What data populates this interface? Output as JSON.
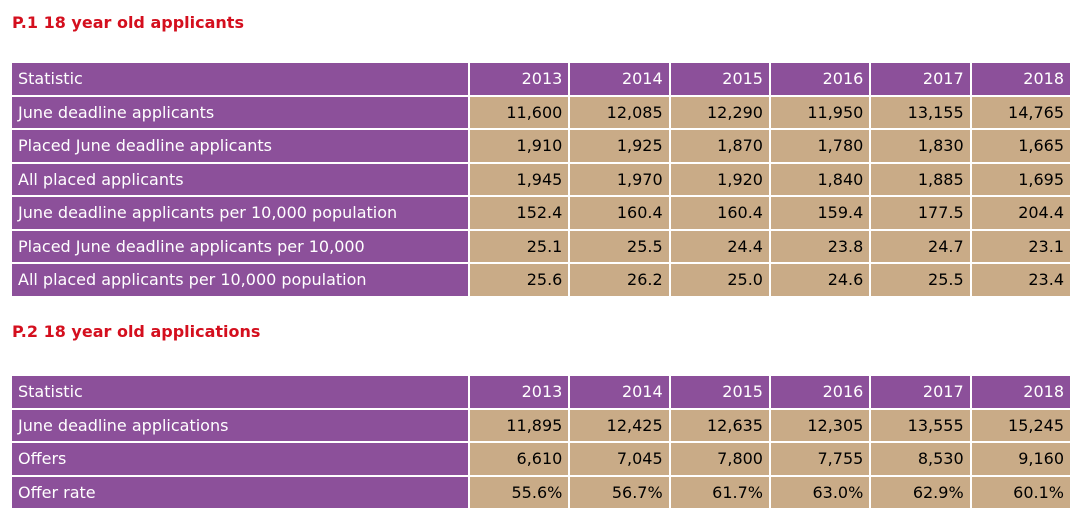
{
  "tables": [
    {
      "title": "P.1 18 year old applicants",
      "header": [
        "Statistic",
        "2013",
        "2014",
        "2015",
        "2016",
        "2017",
        "2018"
      ],
      "rows": [
        {
          "label": "June deadline applicants",
          "values": [
            "11,600",
            "12,085",
            "12,290",
            "11,950",
            "13,155",
            "14,765"
          ]
        },
        {
          "label": "Placed June deadline applicants",
          "values": [
            "1,910",
            "1,925",
            "1,870",
            "1,780",
            "1,830",
            "1,665"
          ]
        },
        {
          "label": "All placed applicants",
          "values": [
            "1,945",
            "1,970",
            "1,920",
            "1,840",
            "1,885",
            "1,695"
          ]
        },
        {
          "label": "June deadline applicants per 10,000 population",
          "values": [
            "152.4",
            "160.4",
            "160.4",
            "159.4",
            "177.5",
            "204.4"
          ]
        },
        {
          "label": "Placed June deadline applicants per 10,000",
          "values": [
            "25.1",
            "25.5",
            "24.4",
            "23.8",
            "24.7",
            "23.1"
          ]
        },
        {
          "label": "All placed applicants per 10,000 population",
          "values": [
            "25.6",
            "26.2",
            "25.0",
            "24.6",
            "25.5",
            "23.4"
          ]
        }
      ]
    },
    {
      "title": "P.2 18 year old applications",
      "header": [
        "Statistic",
        "2013",
        "2014",
        "2015",
        "2016",
        "2017",
        "2018"
      ],
      "rows": [
        {
          "label": "June deadline applications",
          "values": [
            "11,895",
            "12,425",
            "12,635",
            "12,305",
            "13,555",
            "15,245"
          ]
        },
        {
          "label": "Offers",
          "values": [
            "6,610",
            "7,045",
            "7,800",
            "7,755",
            "8,530",
            "9,160"
          ]
        },
        {
          "label": "Offer rate",
          "values": [
            "55.6%",
            "56.7%",
            "61.7%",
            "63.0%",
            "62.9%",
            "60.1%"
          ]
        }
      ]
    }
  ],
  "colors": {
    "title": "#d40f1e",
    "header_fill": "#8c509a",
    "value_fill": "#c9ab87"
  }
}
